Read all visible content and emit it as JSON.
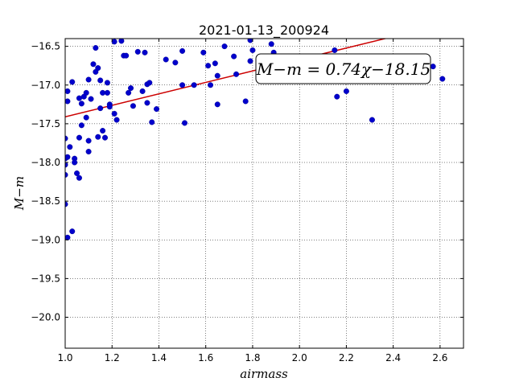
{
  "chart_data": {
    "type": "scatter",
    "title": "2021-01-13_200924",
    "xlabel": "airmass",
    "ylabel": "M−m",
    "xlim": [
      1.0,
      2.7
    ],
    "ylim": [
      -16.4,
      -20.4
    ],
    "y_inverted": true,
    "grid": true,
    "xticks": [
      1.0,
      1.2,
      1.4,
      1.6,
      1.8,
      2.0,
      2.2,
      2.4,
      2.6
    ],
    "xtick_labels": [
      "1.0",
      "1.2",
      "1.4",
      "1.6",
      "1.8",
      "2.0",
      "2.2",
      "2.4",
      "2.6"
    ],
    "yticks": [
      -16.5,
      -17.0,
      -17.5,
      -18.0,
      -18.5,
      -19.0,
      -19.5,
      -20.0
    ],
    "ytick_labels": [
      "−16.5",
      "−17.0",
      "−17.5",
      "−18.0",
      "−18.5",
      "−19.0",
      "−19.5",
      "−20.0"
    ],
    "annotation": "M−m = 0.74χ−18.15",
    "colors": {
      "points": "#0000cc",
      "fit_line": "#cc0000"
    },
    "fit": {
      "slope": 0.74,
      "intercept": -18.15
    },
    "series": [
      {
        "points": [
          [
            1.0,
            -17.69
          ],
          [
            1.0,
            -17.95
          ],
          [
            1.0,
            -18.03
          ],
          [
            1.0,
            -18.16
          ],
          [
            1.0,
            -18.54
          ],
          [
            1.01,
            -17.21
          ],
          [
            1.01,
            -17.08
          ],
          [
            1.01,
            -17.93
          ],
          [
            1.01,
            -18.97
          ],
          [
            1.02,
            -17.8
          ],
          [
            1.03,
            -16.96
          ],
          [
            1.03,
            -18.89
          ],
          [
            1.04,
            -17.95
          ],
          [
            1.04,
            -18.0
          ],
          [
            1.05,
            -18.14
          ],
          [
            1.06,
            -18.2
          ],
          [
            1.06,
            -17.68
          ],
          [
            1.06,
            -17.17
          ],
          [
            1.07,
            -17.24
          ],
          [
            1.07,
            -17.52
          ],
          [
            1.08,
            -17.15
          ],
          [
            1.09,
            -17.1
          ],
          [
            1.09,
            -17.42
          ],
          [
            1.1,
            -17.72
          ],
          [
            1.1,
            -17.86
          ],
          [
            1.1,
            -16.93
          ],
          [
            1.11,
            -17.18
          ],
          [
            1.12,
            -16.73
          ],
          [
            1.13,
            -16.52
          ],
          [
            1.13,
            -16.83
          ],
          [
            1.14,
            -16.78
          ],
          [
            1.14,
            -17.67
          ],
          [
            1.15,
            -17.3
          ],
          [
            1.15,
            -16.94
          ],
          [
            1.16,
            -17.1
          ],
          [
            1.16,
            -17.59
          ],
          [
            1.17,
            -17.68
          ],
          [
            1.18,
            -16.97
          ],
          [
            1.18,
            -17.1
          ],
          [
            1.19,
            -17.25
          ],
          [
            1.19,
            -17.28
          ],
          [
            1.21,
            -16.44
          ],
          [
            1.21,
            -17.37
          ],
          [
            1.22,
            -17.45
          ],
          [
            1.24,
            -16.43
          ],
          [
            1.25,
            -16.62
          ],
          [
            1.26,
            -16.62
          ],
          [
            1.27,
            -17.1
          ],
          [
            1.28,
            -17.04
          ],
          [
            1.29,
            -17.27
          ],
          [
            1.31,
            -16.57
          ],
          [
            1.33,
            -17.08
          ],
          [
            1.34,
            -16.58
          ],
          [
            1.35,
            -16.99
          ],
          [
            1.35,
            -17.23
          ],
          [
            1.36,
            -16.97
          ],
          [
            1.37,
            -17.48
          ],
          [
            1.39,
            -17.31
          ],
          [
            1.43,
            -16.67
          ],
          [
            1.47,
            -16.71
          ],
          [
            1.5,
            -17.0
          ],
          [
            1.51,
            -17.49
          ],
          [
            1.5,
            -16.56
          ],
          [
            1.55,
            -17.0
          ],
          [
            1.59,
            -16.58
          ],
          [
            1.61,
            -16.75
          ],
          [
            1.62,
            -17.0
          ],
          [
            1.64,
            -16.72
          ],
          [
            1.65,
            -17.25
          ],
          [
            1.65,
            -16.88
          ],
          [
            1.68,
            -16.5
          ],
          [
            1.72,
            -16.63
          ],
          [
            1.73,
            -16.86
          ],
          [
            1.77,
            -17.21
          ],
          [
            1.79,
            -16.69
          ],
          [
            1.79,
            -16.42
          ],
          [
            1.8,
            -16.55
          ],
          [
            1.88,
            -16.47
          ],
          [
            1.89,
            -16.58
          ],
          [
            2.15,
            -16.55
          ],
          [
            2.16,
            -17.15
          ],
          [
            2.2,
            -17.08
          ],
          [
            2.31,
            -17.45
          ],
          [
            2.57,
            -16.76
          ],
          [
            2.61,
            -16.92
          ]
        ]
      }
    ]
  }
}
